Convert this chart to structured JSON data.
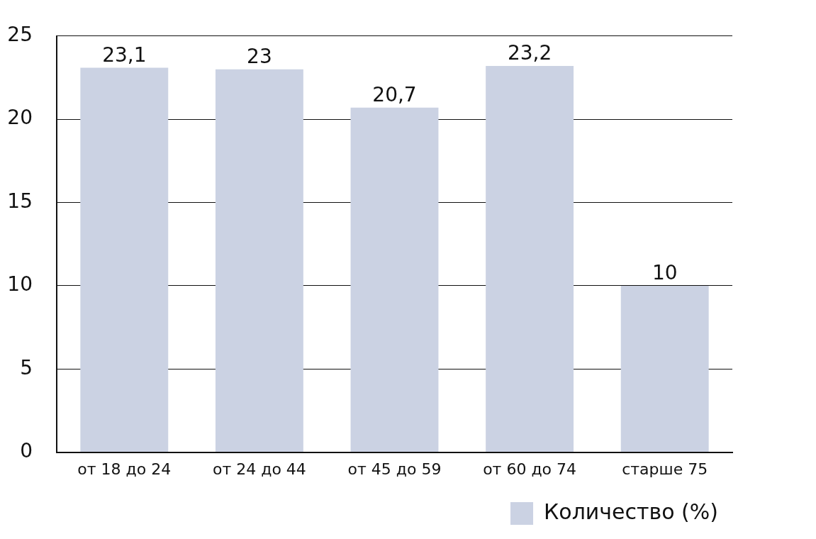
{
  "chart_data": {
    "type": "bar",
    "categories": [
      "от 18 до 24",
      "от 24 до 44",
      "от 45 до 59",
      "от 60 до 74",
      "старше 75"
    ],
    "series": [
      {
        "name": "Количество (%)",
        "color": "#cbd2e3",
        "values": [
          23.1,
          23,
          20.7,
          23.2,
          10
        ],
        "value_labels": [
          "23,1",
          "23",
          "20,7",
          "23,2",
          "10"
        ]
      }
    ],
    "ylim": [
      0,
      25
    ],
    "yticks": [
      0,
      5,
      10,
      15,
      20,
      25
    ],
    "grid": "y",
    "legend": "bottom right"
  }
}
